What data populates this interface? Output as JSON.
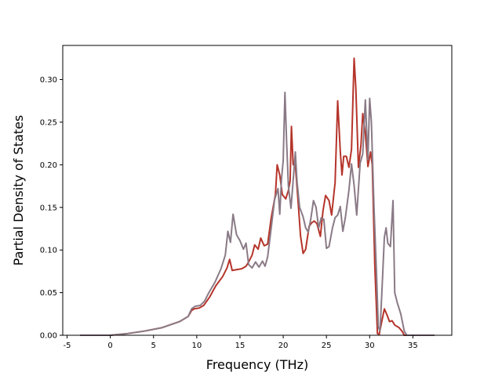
{
  "chart_data": {
    "type": "line",
    "xlabel": "Frequency (THz)",
    "ylabel": "Partial Density of States",
    "xlim": [
      -5.5,
      39.5
    ],
    "ylim": [
      0,
      0.34
    ],
    "x_ticks": [
      "-5",
      "0",
      "5",
      "10",
      "15",
      "20",
      "25",
      "30",
      "35"
    ],
    "y_ticks": [
      "0.00",
      "0.05",
      "0.10",
      "0.15",
      "0.20",
      "0.25",
      "0.30"
    ],
    "grid": false,
    "series": [
      {
        "color": "#b5342a",
        "points": [
          [
            -3.5,
            0
          ],
          [
            0,
            0
          ],
          [
            2,
            0.002
          ],
          [
            4,
            0.005
          ],
          [
            6,
            0.009
          ],
          [
            8,
            0.016
          ],
          [
            9,
            0.022
          ],
          [
            9.4,
            0.029
          ],
          [
            9.7,
            0.031
          ],
          [
            10.3,
            0.032
          ],
          [
            10.8,
            0.035
          ],
          [
            11.5,
            0.045
          ],
          [
            12.2,
            0.058
          ],
          [
            13,
            0.069
          ],
          [
            13.5,
            0.079
          ],
          [
            13.8,
            0.089
          ],
          [
            14.1,
            0.076
          ],
          [
            14.6,
            0.077
          ],
          [
            15.2,
            0.078
          ],
          [
            15.7,
            0.081
          ],
          [
            16,
            0.086
          ],
          [
            16.4,
            0.094
          ],
          [
            16.7,
            0.106
          ],
          [
            17.1,
            0.101
          ],
          [
            17.4,
            0.114
          ],
          [
            17.8,
            0.105
          ],
          [
            18.2,
            0.107
          ],
          [
            18.6,
            0.137
          ],
          [
            19.1,
            0.165
          ],
          [
            19.3,
            0.2
          ],
          [
            19.6,
            0.188
          ],
          [
            19.9,
            0.165
          ],
          [
            20.3,
            0.16
          ],
          [
            20.6,
            0.17
          ],
          [
            20.8,
            0.181
          ],
          [
            20.95,
            0.245
          ],
          [
            21.15,
            0.2
          ],
          [
            21.4,
            0.2
          ],
          [
            21.7,
            0.16
          ],
          [
            22,
            0.117
          ],
          [
            22.3,
            0.096
          ],
          [
            22.6,
            0.101
          ],
          [
            23,
            0.128
          ],
          [
            23.3,
            0.132
          ],
          [
            23.6,
            0.134
          ],
          [
            23.9,
            0.131
          ],
          [
            24.3,
            0.116
          ],
          [
            24.6,
            0.146
          ],
          [
            24.9,
            0.164
          ],
          [
            25.3,
            0.158
          ],
          [
            25.6,
            0.141
          ],
          [
            26,
            0.179
          ],
          [
            26.3,
            0.275
          ],
          [
            26.6,
            0.216
          ],
          [
            26.8,
            0.188
          ],
          [
            27,
            0.21
          ],
          [
            27.3,
            0.21
          ],
          [
            27.6,
            0.197
          ],
          [
            27.9,
            0.218
          ],
          [
            28.2,
            0.325
          ],
          [
            28.4,
            0.29
          ],
          [
            28.7,
            0.197
          ],
          [
            29,
            0.224
          ],
          [
            29.2,
            0.26
          ],
          [
            29.5,
            0.237
          ],
          [
            29.8,
            0.198
          ],
          [
            30.1,
            0.215
          ],
          [
            30.3,
            0.2
          ],
          [
            30.6,
            0.08
          ],
          [
            30.9,
            0.002
          ],
          [
            31.1,
            0.001
          ],
          [
            31.4,
            0.016
          ],
          [
            31.7,
            0.031
          ],
          [
            32,
            0.024
          ],
          [
            32.3,
            0.016
          ],
          [
            32.6,
            0.017
          ],
          [
            32.9,
            0.012
          ],
          [
            33.4,
            0.009
          ],
          [
            33.8,
            0.004
          ],
          [
            34,
            0
          ],
          [
            37.5,
            0
          ]
        ]
      },
      {
        "color": "#8a7a86",
        "points": [
          [
            -3.5,
            0
          ],
          [
            0,
            0
          ],
          [
            2,
            0.002
          ],
          [
            4,
            0.005
          ],
          [
            6,
            0.009
          ],
          [
            8,
            0.016
          ],
          [
            9,
            0.022
          ],
          [
            9.4,
            0.031
          ],
          [
            9.8,
            0.034
          ],
          [
            10.4,
            0.035
          ],
          [
            10.9,
            0.04
          ],
          [
            11.4,
            0.05
          ],
          [
            12.1,
            0.062
          ],
          [
            12.8,
            0.078
          ],
          [
            13.3,
            0.094
          ],
          [
            13.6,
            0.122
          ],
          [
            13.9,
            0.109
          ],
          [
            14.2,
            0.142
          ],
          [
            14.6,
            0.118
          ],
          [
            15,
            0.111
          ],
          [
            15.4,
            0.101
          ],
          [
            15.7,
            0.108
          ],
          [
            16,
            0.083
          ],
          [
            16.4,
            0.079
          ],
          [
            16.8,
            0.086
          ],
          [
            17.2,
            0.08
          ],
          [
            17.6,
            0.087
          ],
          [
            17.9,
            0.081
          ],
          [
            18.2,
            0.092
          ],
          [
            18.6,
            0.125
          ],
          [
            19,
            0.159
          ],
          [
            19.4,
            0.172
          ],
          [
            19.6,
            0.142
          ],
          [
            19.8,
            0.183
          ],
          [
            20,
            0.205
          ],
          [
            20.2,
            0.285
          ],
          [
            20.4,
            0.225
          ],
          [
            20.6,
            0.175
          ],
          [
            20.9,
            0.149
          ],
          [
            21.2,
            0.188
          ],
          [
            21.4,
            0.215
          ],
          [
            21.6,
            0.18
          ],
          [
            21.9,
            0.15
          ],
          [
            22.3,
            0.139
          ],
          [
            22.6,
            0.126
          ],
          [
            22.9,
            0.121
          ],
          [
            23.2,
            0.137
          ],
          [
            23.5,
            0.158
          ],
          [
            23.8,
            0.15
          ],
          [
            24.1,
            0.126
          ],
          [
            24.4,
            0.138
          ],
          [
            24.7,
            0.136
          ],
          [
            25,
            0.102
          ],
          [
            25.3,
            0.104
          ],
          [
            25.7,
            0.126
          ],
          [
            26,
            0.138
          ],
          [
            26.3,
            0.141
          ],
          [
            26.6,
            0.151
          ],
          [
            26.9,
            0.122
          ],
          [
            27.2,
            0.139
          ],
          [
            27.6,
            0.17
          ],
          [
            27.9,
            0.201
          ],
          [
            28.2,
            0.176
          ],
          [
            28.5,
            0.141
          ],
          [
            28.9,
            0.202
          ],
          [
            29.2,
            0.213
          ],
          [
            29.5,
            0.276
          ],
          [
            29.8,
            0.206
          ],
          [
            30,
            0.278
          ],
          [
            30.2,
            0.25
          ],
          [
            30.5,
            0.15
          ],
          [
            30.8,
            0.07
          ],
          [
            31,
            0.01
          ],
          [
            31.2,
            0.005
          ],
          [
            31.5,
            0.07
          ],
          [
            31.7,
            0.115
          ],
          [
            31.9,
            0.126
          ],
          [
            32.1,
            0.108
          ],
          [
            32.4,
            0.104
          ],
          [
            32.7,
            0.158
          ],
          [
            32.9,
            0.05
          ],
          [
            33.2,
            0.038
          ],
          [
            33.6,
            0.025
          ],
          [
            34,
            0.005
          ],
          [
            34.3,
            0
          ],
          [
            37.5,
            0
          ]
        ]
      }
    ]
  }
}
